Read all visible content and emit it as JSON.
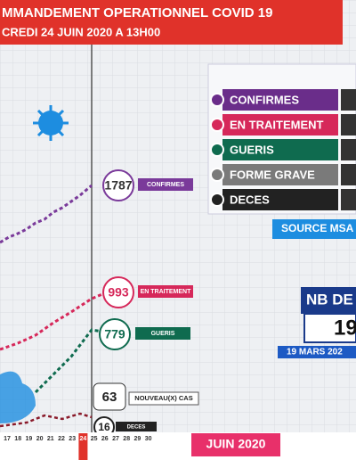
{
  "header": {
    "title": "MMANDEMENT OPERATIONNEL COVID 19",
    "subtitle": "CREDI 24 JUIN 2020 A 13H00"
  },
  "callouts": [
    {
      "value": "1787",
      "label": "CONFIRMES"
    },
    {
      "value": "993",
      "label": "EN TRAITEMENT"
    },
    {
      "value": "779",
      "label": "GUERIS"
    },
    {
      "value": "63",
      "label": "NOUVEAU(X) CAS"
    },
    {
      "value": "16",
      "label": "DECES"
    }
  ],
  "legend": [
    "CONFIRMES",
    "EN TRAITEMENT",
    "GUERIS",
    "FORME GRAVE",
    "DECES"
  ],
  "source": "SOURCE MSA",
  "nb_box": {
    "title": "NB DE",
    "value": "19",
    "date": "19 MARS 202"
  },
  "axis": {
    "days": [
      "17",
      "18",
      "19",
      "20",
      "21",
      "22",
      "23",
      "24",
      "25",
      "26",
      "27",
      "28",
      "29",
      "30"
    ],
    "month": "JUIN 2020"
  }
}
